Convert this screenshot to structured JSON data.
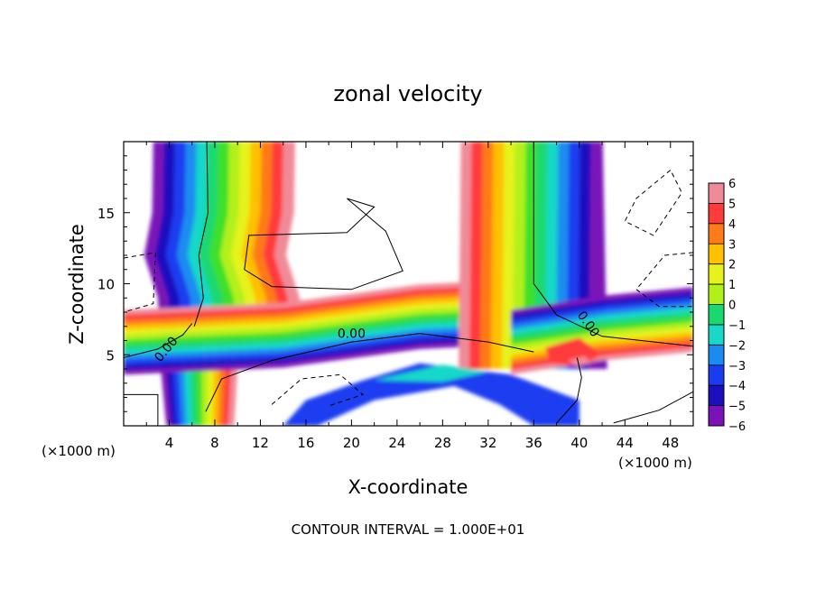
{
  "chart_data": {
    "type": "heatmap",
    "title": "zonal velocity",
    "xlabel": "X-coordinate",
    "ylabel": "Z-coordinate",
    "x_unit_note": "(×1000 m)",
    "footer": "CONTOUR INTERVAL = 1.000E+01",
    "xlim": [
      0,
      50
    ],
    "ylim": [
      0,
      20
    ],
    "x_ticks": [
      "4",
      "8",
      "12",
      "16",
      "20",
      "24",
      "28",
      "32",
      "36",
      "40",
      "44",
      "48"
    ],
    "y_ticks": [
      "5",
      "10",
      "15"
    ],
    "colorbar": {
      "range": [
        -6,
        6
      ],
      "labels": [
        "6",
        "5",
        "4",
        "3",
        "2",
        "1",
        "0",
        "−1",
        "−2",
        "−3",
        "−4",
        "−5",
        "−6"
      ],
      "colors": [
        "#f08a98",
        "#ff3a3a",
        "#ff7a18",
        "#ffc000",
        "#e6f21a",
        "#b2f01a",
        "#3ee02a",
        "#1ad870",
        "#18d8c8",
        "#1a8cf0",
        "#1a3cf0",
        "#1a10c0",
        "#7a12b8"
      ]
    },
    "contour_labels": [
      "0.00",
      "0.00",
      "0.00"
    ]
  }
}
